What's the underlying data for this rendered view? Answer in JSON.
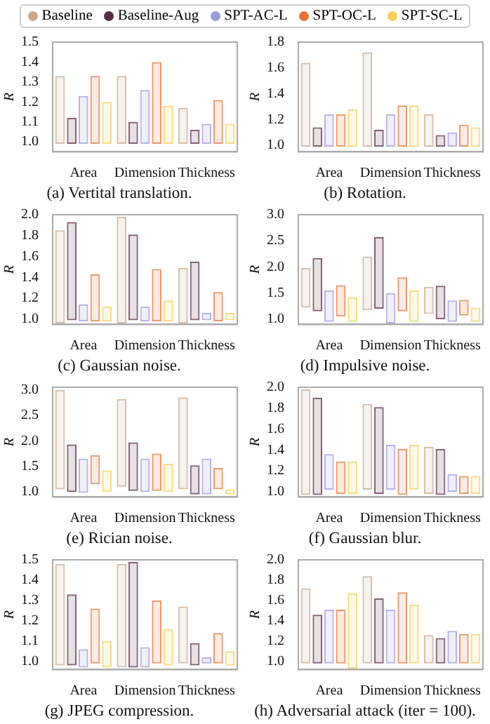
{
  "chart_data": [
    {
      "type": "bar",
      "title": "(a) Vertital translation.",
      "ylabel": "R",
      "categories": [
        "Area",
        "Dimension",
        "Thickness"
      ],
      "ylim": [
        0.95,
        1.5
      ],
      "yticks": [
        {
          "value": 1,
          "label": "1.0"
        },
        1.1,
        1.2,
        1.3,
        1.4,
        1.5
      ],
      "grid": false,
      "legend": "top",
      "series": [
        {
          "name": "Baseline",
          "color": "#c9a88e",
          "base": [
            0.99,
            0.99,
            0.99
          ],
          "values": [
            0.34,
            0.34,
            0.18
          ]
        },
        {
          "name": "Baseline-Aug",
          "color": "#5b2c47",
          "base": [
            0.99,
            0.99,
            0.99
          ],
          "values": [
            0.13,
            0.11,
            0.07
          ]
        },
        {
          "name": "SPT-AC-L",
          "color": "#9d9bd8",
          "base": [
            0.99,
            0.99,
            0.99
          ],
          "values": [
            0.24,
            0.27,
            0.1
          ]
        },
        {
          "name": "SPT-OC-L",
          "color": "#e5773b",
          "base": [
            0.99,
            0.99,
            0.99
          ],
          "values": [
            0.34,
            0.41,
            0.22
          ]
        },
        {
          "name": "SPT-SC-L",
          "color": "#f6cf5c",
          "base": [
            0.99,
            0.99,
            0.99
          ],
          "values": [
            0.21,
            0.19,
            0.1
          ]
        }
      ]
    },
    {
      "type": "bar",
      "title": "(b) Rotation.",
      "ylabel": "R",
      "categories": [
        "Area",
        "Dimension",
        "Thickness"
      ],
      "ylim": [
        0.95,
        1.8
      ],
      "yticks": [
        {
          "value": 1,
          "label": "1.0"
        },
        1.2,
        1.4,
        1.6,
        1.8
      ],
      "grid": false,
      "series": [
        {
          "color": "#c9a88e",
          "base": [
            0.99,
            0.99,
            0.99
          ],
          "values": [
            0.65,
            0.73,
            0.25
          ]
        },
        {
          "color": "#5b2c47",
          "base": [
            0.99,
            0.99,
            0.99
          ],
          "values": [
            0.15,
            0.13,
            0.09
          ]
        },
        {
          "color": "#9d9bd8",
          "base": [
            0.99,
            0.99,
            0.99
          ],
          "values": [
            0.25,
            0.25,
            0.11
          ]
        },
        {
          "color": "#e5773b",
          "base": [
            0.99,
            0.99,
            0.99
          ],
          "values": [
            0.25,
            0.32,
            0.17
          ]
        },
        {
          "color": "#f6cf5c",
          "base": [
            0.99,
            0.99,
            0.99
          ],
          "values": [
            0.29,
            0.32,
            0.15
          ]
        }
      ]
    },
    {
      "type": "bar",
      "title": "(c) Gaussian noise.",
      "ylabel": "R",
      "categories": [
        "Area",
        "Dimension",
        "Thickness"
      ],
      "ylim": [
        0.95,
        2.0
      ],
      "yticks": [
        {
          "value": 1,
          "label": "1.0"
        },
        1.2,
        1.4,
        1.6,
        1.8,
        {
          "value": 2,
          "label": "2.0"
        }
      ],
      "grid": false,
      "series": [
        {
          "color": "#c9a88e",
          "base": [
            0.96,
            0.96,
            0.96
          ],
          "values": [
            0.89,
            1.02,
            0.53
          ]
        },
        {
          "color": "#5b2c47",
          "base": [
            0.99,
            0.99,
            0.99
          ],
          "values": [
            0.94,
            0.82,
            0.56
          ]
        },
        {
          "color": "#9d9bd8",
          "base": [
            0.98,
            0.98,
            0.99
          ],
          "values": [
            0.16,
            0.14,
            0.07
          ]
        },
        {
          "color": "#e5773b",
          "base": [
            0.98,
            0.98,
            0.98
          ],
          "values": [
            0.45,
            0.5,
            0.28
          ]
        },
        {
          "color": "#f6cf5c",
          "base": [
            0.98,
            0.98,
            0.99
          ],
          "values": [
            0.14,
            0.2,
            0.07
          ]
        }
      ]
    },
    {
      "type": "bar",
      "title": "(d) Impulsive noise.",
      "ylabel": "R",
      "categories": [
        "Area",
        "Dimension",
        "Thickness"
      ],
      "ylim": [
        0.9,
        3.0
      ],
      "yticks": [
        {
          "value": 1,
          "label": "1.0"
        },
        1.5,
        {
          "value": 2,
          "label": "2.0"
        },
        2.5,
        {
          "value": 3,
          "label": "3.0"
        }
      ],
      "grid": false,
      "series": [
        {
          "color": "#c9a88e",
          "base": [
            1.22,
            1.17,
            1.1
          ],
          "values": [
            0.76,
            1.03,
            0.52
          ]
        },
        {
          "color": "#5b2c47",
          "base": [
            1.15,
            1.2,
            1.0
          ],
          "values": [
            1.02,
            1.37,
            0.64
          ]
        },
        {
          "color": "#9d9bd8",
          "base": [
            0.95,
            0.92,
            0.95
          ],
          "values": [
            0.6,
            0.58,
            0.41
          ]
        },
        {
          "color": "#e5773b",
          "base": [
            1.05,
            1.15,
            1.07
          ],
          "values": [
            0.6,
            0.65,
            0.3
          ]
        },
        {
          "color": "#f6cf5c",
          "base": [
            0.95,
            0.95,
            0.95
          ],
          "values": [
            0.47,
            0.6,
            0.27
          ]
        }
      ]
    },
    {
      "type": "bar",
      "title": "(e) Rician noise.",
      "ylabel": "R",
      "categories": [
        "Area",
        "Dimension",
        "Thickness"
      ],
      "ylim": [
        0.9,
        3.05
      ],
      "yticks": [
        {
          "value": 1,
          "label": "1.0"
        },
        1.5,
        {
          "value": 2,
          "label": "2.0"
        },
        2.5,
        {
          "value": 3,
          "label": "3.0"
        }
      ],
      "grid": false,
      "series": [
        {
          "color": "#c9a88e",
          "base": [
            1.05,
            1.1,
            1.05
          ],
          "values": [
            1.95,
            1.72,
            1.8
          ]
        },
        {
          "color": "#5b2c47",
          "base": [
            1.0,
            1.02,
            0.95
          ],
          "values": [
            0.93,
            0.95,
            0.57
          ]
        },
        {
          "color": "#9d9bd8",
          "base": [
            0.98,
            1.0,
            0.95
          ],
          "values": [
            0.67,
            0.65,
            0.7
          ]
        },
        {
          "color": "#e5773b",
          "base": [
            1.15,
            1.02,
            1.05
          ],
          "values": [
            0.57,
            0.73,
            0.42
          ]
        },
        {
          "color": "#f6cf5c",
          "base": [
            1.0,
            1.0,
            0.95
          ],
          "values": [
            0.42,
            0.55,
            0.1
          ]
        }
      ]
    },
    {
      "type": "bar",
      "title": "(f) Gaussian blur.",
      "ylabel": "R",
      "categories": [
        "Area",
        "Dimension",
        "Thickness"
      ],
      "ylim": [
        0.95,
        2.0
      ],
      "yticks": [
        {
          "value": 1,
          "label": "1.0"
        },
        1.2,
        1.4,
        1.6,
        1.8,
        {
          "value": 2,
          "label": "2.0"
        }
      ],
      "grid": false,
      "series": [
        {
          "color": "#c9a88e",
          "base": [
            0.97,
            1.02,
            0.98
          ],
          "values": [
            1.01,
            0.82,
            0.45
          ]
        },
        {
          "color": "#5b2c47",
          "base": [
            0.97,
            0.98,
            0.97
          ],
          "values": [
            0.93,
            0.83,
            0.44
          ]
        },
        {
          "color": "#9d9bd8",
          "base": [
            1.02,
            1.02,
            1.0
          ],
          "values": [
            0.34,
            0.43,
            0.17
          ]
        },
        {
          "color": "#e5773b",
          "base": [
            0.98,
            0.97,
            0.98
          ],
          "values": [
            0.31,
            0.44,
            0.17
          ]
        },
        {
          "color": "#f6cf5c",
          "base": [
            0.98,
            1.02,
            0.98
          ],
          "values": [
            0.31,
            0.43,
            0.17
          ]
        }
      ]
    },
    {
      "type": "bar",
      "title": "(g) JPEG compression.",
      "ylabel": "R",
      "categories": [
        "Area",
        "Dimension",
        "Thickness"
      ],
      "ylim": [
        0.96,
        1.5
      ],
      "yticks": [
        {
          "value": 1,
          "label": "1.0"
        },
        1.1,
        1.2,
        1.3,
        1.4,
        1.5
      ],
      "grid": false,
      "series": [
        {
          "color": "#c9a88e",
          "base": [
            0.98,
            0.97,
            0.99
          ],
          "values": [
            0.5,
            0.51,
            0.28
          ]
        },
        {
          "color": "#5b2c47",
          "base": [
            0.98,
            0.97,
            0.98
          ],
          "values": [
            0.35,
            0.52,
            0.11
          ]
        },
        {
          "color": "#9d9bd8",
          "base": [
            0.97,
            0.97,
            0.99
          ],
          "values": [
            0.09,
            0.1,
            0.03
          ]
        },
        {
          "color": "#e5773b",
          "base": [
            0.99,
            0.99,
            0.99
          ],
          "values": [
            0.27,
            0.31,
            0.15
          ]
        },
        {
          "color": "#f6cf5c",
          "base": [
            0.97,
            0.98,
            0.98
          ],
          "values": [
            0.13,
            0.18,
            0.07
          ]
        }
      ]
    },
    {
      "type": "bar",
      "title": "(h) Adversarial attack (iter = 100).",
      "ylabel": "R",
      "categories": [
        "Area",
        "Dimension",
        "Thickness"
      ],
      "ylim": [
        0.92,
        2.0
      ],
      "yticks": [
        {
          "value": 1,
          "label": "1.0"
        },
        1.2,
        1.4,
        1.6,
        1.8,
        {
          "value": 2,
          "label": "2.0"
        }
      ],
      "grid": false,
      "series": [
        {
          "color": "#c9a88e",
          "base": [
            0.98,
            0.98,
            0.98
          ],
          "values": [
            0.74,
            0.86,
            0.28
          ]
        },
        {
          "color": "#5b2c47",
          "base": [
            0.98,
            0.98,
            0.98
          ],
          "values": [
            0.48,
            0.64,
            0.25
          ]
        },
        {
          "color": "#9d9bd8",
          "base": [
            0.98,
            0.98,
            0.98
          ],
          "values": [
            0.53,
            0.53,
            0.32
          ]
        },
        {
          "color": "#e5773b",
          "base": [
            0.98,
            0.98,
            0.98
          ],
          "values": [
            0.53,
            0.7,
            0.29
          ]
        },
        {
          "color": "#f6cf5c",
          "base": [
            0.93,
            0.98,
            0.98
          ],
          "values": [
            0.74,
            0.58,
            0.29
          ]
        }
      ]
    }
  ]
}
